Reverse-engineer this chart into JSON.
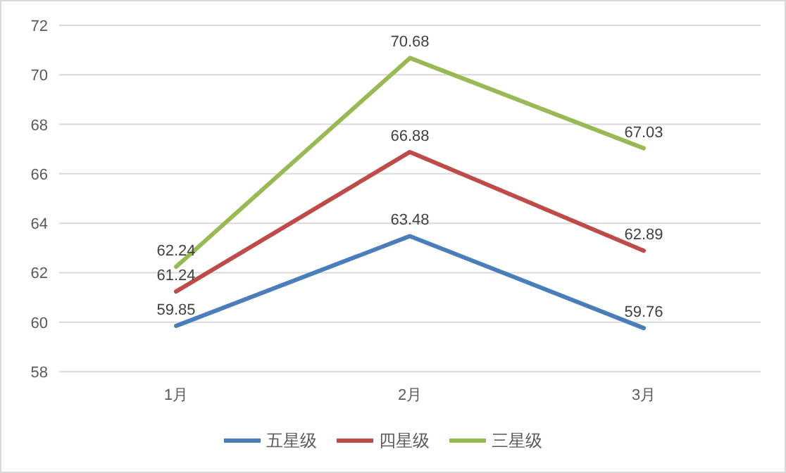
{
  "chart_data": {
    "type": "line",
    "categories": [
      "1月",
      "2月",
      "3月"
    ],
    "series": [
      {
        "name": "五星级",
        "color": "#4a7ebb",
        "values": [
          59.85,
          63.48,
          59.76
        ]
      },
      {
        "name": "四星级",
        "color": "#be4b48",
        "values": [
          61.24,
          66.88,
          62.89
        ]
      },
      {
        "name": "三星级",
        "color": "#98b954",
        "values": [
          62.24,
          70.68,
          67.03
        ]
      }
    ],
    "ylim": [
      58,
      72
    ],
    "yticks": [
      58,
      60,
      62,
      64,
      66,
      68,
      70,
      72
    ],
    "grid": "y",
    "legend": "bottom",
    "data_labels": true
  }
}
